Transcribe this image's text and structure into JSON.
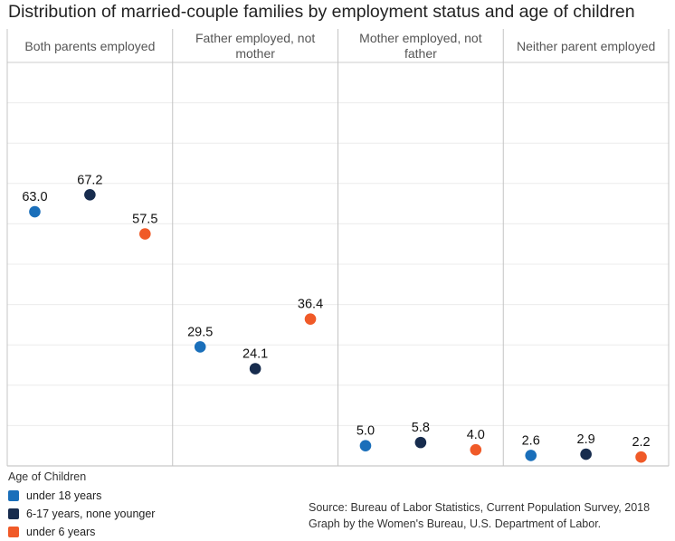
{
  "chart_data": {
    "type": "scatter",
    "title": "Distribution of married-couple families by employment status and age of children",
    "panels": [
      {
        "label_lines": [
          "Both parents employed"
        ]
      },
      {
        "label_lines": [
          "Father employed, not",
          "mother"
        ]
      },
      {
        "label_lines": [
          "Mother employed, not",
          "father"
        ]
      },
      {
        "label_lines": [
          "Neither parent employed"
        ]
      }
    ],
    "series": [
      {
        "name": "under 18 years",
        "color": "#1a6fba",
        "values": [
          63.0,
          29.5,
          5.0,
          2.6
        ],
        "labels": [
          "63.0",
          "29.5",
          "5.0",
          "2.6"
        ]
      },
      {
        "name": "6-17 years, none younger",
        "color": "#172c4e",
        "values": [
          67.2,
          24.1,
          5.8,
          2.9
        ],
        "labels": [
          "67.2",
          "24.1",
          "5.8",
          "2.9"
        ]
      },
      {
        "name": "under 6 years",
        "color": "#f05a28",
        "values": [
          57.5,
          36.4,
          4.0,
          2.2
        ],
        "labels": [
          "57.5",
          "36.4",
          "4.0",
          "2.2"
        ]
      }
    ],
    "ylim": [
      0,
      100
    ],
    "grid": true,
    "legend": {
      "title": "Age of Children",
      "position": "bottom-left"
    }
  },
  "source": {
    "line1": "Source: Bureau of Labor Statistics, Current Population Survey, 2018",
    "line2": "Graph by the Women's Bureau, U.S. Department of Labor."
  }
}
